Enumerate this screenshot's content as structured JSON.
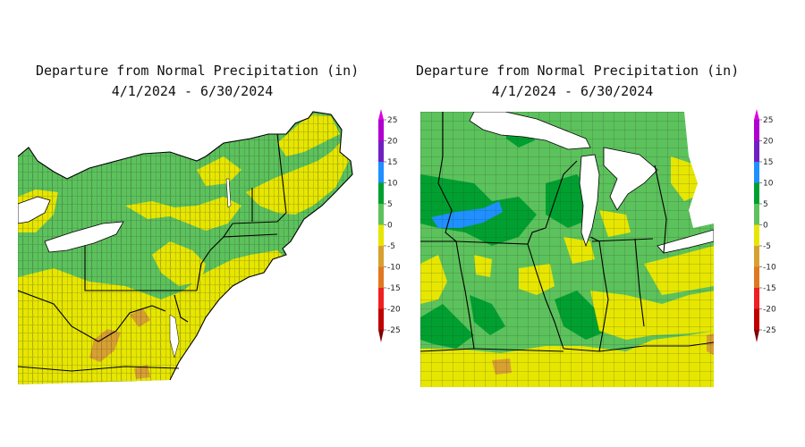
{
  "maps": [
    {
      "title_line1": "Departure from Normal Precipitation (in)",
      "title_line2": "4/1/2024 - 6/30/2024",
      "region": "Northeast"
    },
    {
      "title_line1": "Departure from Normal Precipitation (in)",
      "title_line2": "4/1/2024 - 6/30/2024",
      "region": "Midwest"
    }
  ],
  "legend": {
    "labels": [
      "25",
      "20",
      "15",
      "10",
      "5",
      "0",
      "-5",
      "-10",
      "-15",
      "-20",
      "-25"
    ],
    "colors": [
      "#e000e0",
      "#b000d0",
      "#7020c0",
      "#1e90ff",
      "#00a030",
      "#5cc25c",
      "#e6e600",
      "#d8a030",
      "#e07820",
      "#f02020",
      "#c00000",
      "#800000"
    ]
  },
  "colors": {
    "green_light": "#5cc25c",
    "green_dark": "#00a030",
    "yellow": "#e6e600",
    "orange": "#d8a030",
    "blue": "#1e90ff",
    "water": "#ffffff",
    "border": "#000000"
  }
}
